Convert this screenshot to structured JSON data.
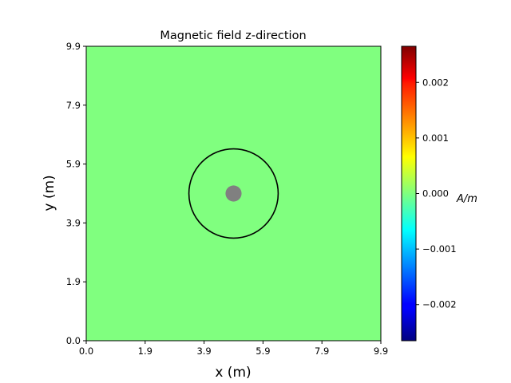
{
  "chart_data": {
    "type": "heatmap",
    "title": "Magnetic field z-direction",
    "xlabel": "x (m)",
    "ylabel": "y (m)",
    "xlim": [
      0.0,
      9.9
    ],
    "ylim": [
      0.0,
      9.9
    ],
    "xticks": [
      "0.0",
      "1.9",
      "3.9",
      "5.9",
      "7.9",
      "9.9"
    ],
    "yticks": [
      "0.0",
      "1.9",
      "3.9",
      "5.9",
      "7.9",
      "9.9"
    ],
    "field_value": 0.0,
    "field_color": "#80ff7f",
    "colormap": "jet",
    "colorbar": {
      "label": "A/m",
      "range": [
        -0.00265,
        0.00265
      ],
      "ticks": [
        "−0.002",
        "−0.001",
        "0.000",
        "0.001",
        "0.002"
      ],
      "tick_values": [
        -0.002,
        -0.001,
        0.0,
        0.001,
        0.002
      ]
    },
    "circle": {
      "cx": 4.95,
      "cy": 4.95,
      "r": 1.5,
      "color": "#000000"
    },
    "source": {
      "cx": 4.95,
      "cy": 4.95,
      "r": 0.27,
      "color": "#808080"
    }
  }
}
